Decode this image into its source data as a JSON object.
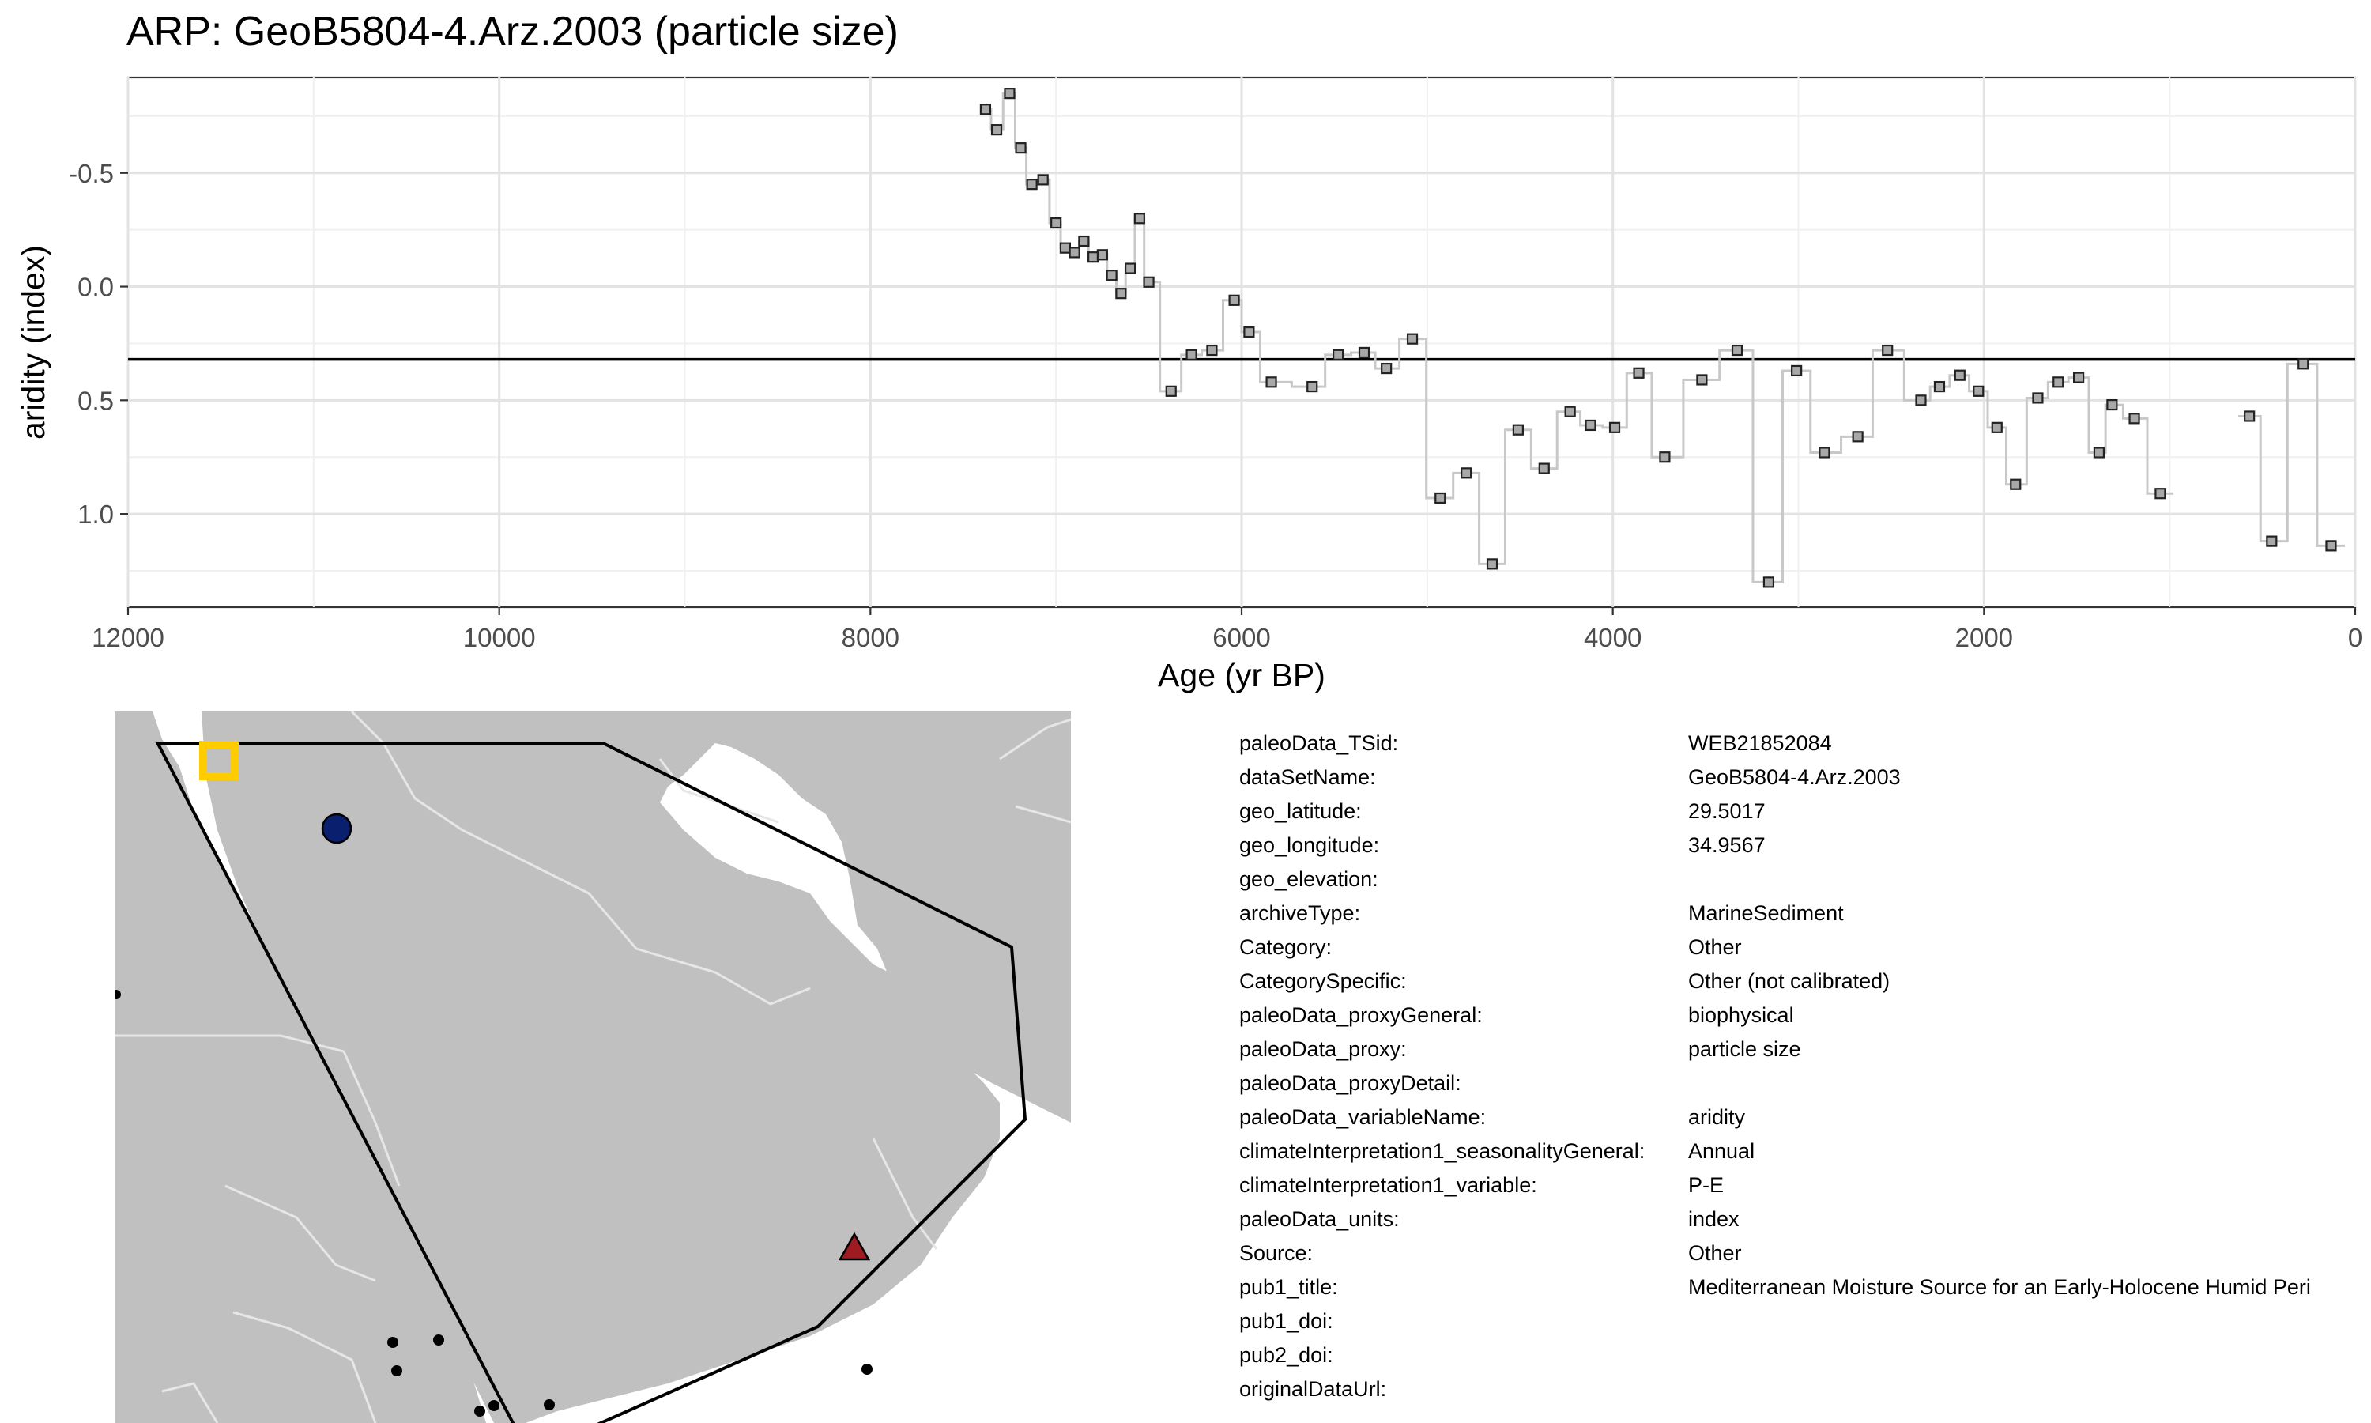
{
  "title": "ARP: GeoB5804-4.Arz.2003 (particle size)",
  "chart_data": {
    "type": "line",
    "xlabel": "Age (yr BP)",
    "ylabel": "aridity (index)",
    "xlim": [
      12000,
      0
    ],
    "ylim": [
      -0.92,
      1.41
    ],
    "y_reversed": true,
    "x_ticks": [
      12000,
      10000,
      8000,
      6000,
      4000,
      2000,
      0
    ],
    "y_ticks": [
      -0.5,
      0.0,
      0.5,
      1.0
    ],
    "x_tick_labels": [
      "12000",
      "10000",
      "8000",
      "6000",
      "4000",
      "2000",
      "0"
    ],
    "y_tick_labels": [
      "-0.5",
      "0.0",
      "0.5",
      "1.0"
    ],
    "reference_line": 0.32,
    "grid": true,
    "series": [
      {
        "style": "step-line-with-square-markers",
        "line_color": "#c8c8c8",
        "marker_fill": "#a8a8a8",
        "segments": [
          [
            [
              7380,
              -0.78
            ],
            [
              7320,
              -0.69
            ],
            [
              7250,
              -0.85
            ],
            [
              7190,
              -0.61
            ],
            [
              7130,
              -0.45
            ],
            [
              7070,
              -0.47
            ],
            [
              7000,
              -0.28
            ],
            [
              6950,
              -0.17
            ],
            [
              6900,
              -0.15
            ],
            [
              6850,
              -0.2
            ],
            [
              6800,
              -0.13
            ],
            [
              6750,
              -0.14
            ],
            [
              6700,
              -0.05
            ],
            [
              6650,
              0.03
            ],
            [
              6600,
              -0.08
            ],
            [
              6550,
              -0.3
            ],
            [
              6500,
              -0.02
            ],
            [
              6380,
              0.46
            ],
            [
              6270,
              0.3
            ],
            [
              6160,
              0.28
            ],
            [
              6040,
              0.06
            ],
            [
              5960,
              0.2
            ],
            [
              5840,
              0.42
            ],
            [
              5620,
              0.44
            ],
            [
              5480,
              0.3
            ],
            [
              5340,
              0.29
            ],
            [
              5220,
              0.36
            ],
            [
              5080,
              0.23
            ],
            [
              4930,
              0.93
            ],
            [
              4790,
              0.82
            ],
            [
              4650,
              1.22
            ],
            [
              4510,
              0.63
            ],
            [
              4370,
              0.8
            ],
            [
              4230,
              0.55
            ],
            [
              4120,
              0.61
            ],
            [
              3990,
              0.62
            ],
            [
              3860,
              0.38
            ],
            [
              3720,
              0.75
            ],
            [
              3520,
              0.41
            ],
            [
              3330,
              0.28
            ],
            [
              3160,
              1.3
            ],
            [
              3010,
              0.37
            ],
            [
              2860,
              0.73
            ],
            [
              2680,
              0.66
            ],
            [
              2520,
              0.28
            ],
            [
              2340,
              0.5
            ],
            [
              2240,
              0.44
            ],
            [
              2130,
              0.39
            ],
            [
              2030,
              0.46
            ],
            [
              1930,
              0.62
            ],
            [
              1830,
              0.87
            ],
            [
              1710,
              0.49
            ],
            [
              1600,
              0.42
            ],
            [
              1490,
              0.4
            ],
            [
              1380,
              0.73
            ],
            [
              1310,
              0.52
            ],
            [
              1190,
              0.58
            ],
            [
              1050,
              0.91
            ]
          ],
          [
            [
              570,
              0.57
            ],
            [
              450,
              1.12
            ],
            [
              280,
              0.34
            ],
            [
              130,
              1.14
            ]
          ]
        ]
      }
    ]
  },
  "map": {
    "land_color": "#c0c0c0",
    "sea_color": "#ffffff",
    "border_color": "#e6e6e6",
    "region_outline_color": "#000000",
    "site_marker_color": "#ffcc00",
    "other_markers": [
      {
        "shape": "circle",
        "color": "#0a1f6e"
      },
      {
        "shape": "triangle",
        "color": "#9e1b22"
      }
    ]
  },
  "metadata": [
    {
      "key": "paleoData_TSid:",
      "value": "WEB21852084"
    },
    {
      "key": "dataSetName:",
      "value": "GeoB5804-4.Arz.2003"
    },
    {
      "key": "geo_latitude:",
      "value": "29.5017"
    },
    {
      "key": "geo_longitude:",
      "value": "34.9567"
    },
    {
      "key": "geo_elevation:",
      "value": ""
    },
    {
      "key": "archiveType:",
      "value": "MarineSediment"
    },
    {
      "key": "Category:",
      "value": "Other"
    },
    {
      "key": "CategorySpecific:",
      "value": "Other (not calibrated)"
    },
    {
      "key": "paleoData_proxyGeneral:",
      "value": "biophysical"
    },
    {
      "key": "paleoData_proxy:",
      "value": "particle size"
    },
    {
      "key": "paleoData_proxyDetail:",
      "value": ""
    },
    {
      "key": "paleoData_variableName:",
      "value": "aridity"
    },
    {
      "key": "climateInterpretation1_seasonalityGeneral:",
      "value": "Annual"
    },
    {
      "key": "climateInterpretation1_variable:",
      "value": "P-E"
    },
    {
      "key": "paleoData_units:",
      "value": "index"
    },
    {
      "key": "Source:",
      "value": "Other"
    },
    {
      "key": "pub1_title:",
      "value": "Mediterranean Moisture Source for an Early-Holocene Humid Peri"
    },
    {
      "key": "pub1_doi:",
      "value": ""
    },
    {
      "key": "pub2_doi:",
      "value": ""
    },
    {
      "key": "originalDataUrl:",
      "value": ""
    }
  ]
}
